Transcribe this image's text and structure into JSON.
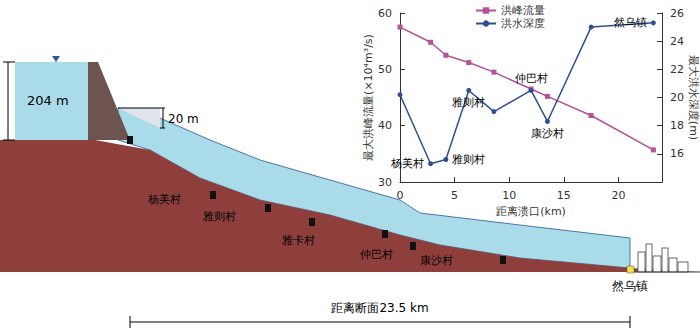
{
  "chart_data": {
    "type": "line",
    "x": [
      0,
      2.8,
      4.2,
      6.3,
      8.6,
      12,
      13.5,
      17.5,
      23.2
    ],
    "series": [
      {
        "name": "洪峰流量",
        "color": "#b4519a",
        "marker": "square",
        "line_style": "solid",
        "values": [
          57.5,
          54.8,
          52.5,
          51.2,
          49.5,
          46.5,
          45.2,
          41.8,
          35.7
        ]
      },
      {
        "name": "洪水深度",
        "color": "#2e4f8f",
        "marker": "circle",
        "line_style": "solid",
        "axis": "y2",
        "values": [
          20.2,
          15.3,
          15.6,
          20.5,
          19.0,
          20.5,
          18.3,
          25.0,
          25.3
        ],
        "point_labels": [
          null,
          "杨美村",
          "雅则村",
          "雅则村",
          null,
          "仲巴村",
          "康沙村",
          null,
          "然乌镇"
        ]
      }
    ],
    "xlabel": "距离溃口(km)",
    "ylabel": "最大洪峰流量(×10⁴m³/s)",
    "y2label": "最大洪水深度(m)",
    "xlim": [
      0,
      24
    ],
    "xticks": [
      0,
      5,
      10,
      15,
      20
    ],
    "ylim": [
      30,
      60
    ],
    "yticks": [
      30,
      40,
      50,
      60
    ],
    "y2lim": [
      14,
      26
    ],
    "y2ticks": [
      16,
      18,
      20,
      22,
      24,
      26
    ],
    "grid": false,
    "legend": "upper left"
  },
  "diagram": {
    "reservoir_depth": "204 m",
    "breach_height": "20 m",
    "villages": [
      "杨美村",
      "雅则村",
      "雅卡村",
      "仲巴村",
      "康沙村"
    ],
    "town": "然乌镇",
    "distance_label": "距离断面23.5 km"
  }
}
